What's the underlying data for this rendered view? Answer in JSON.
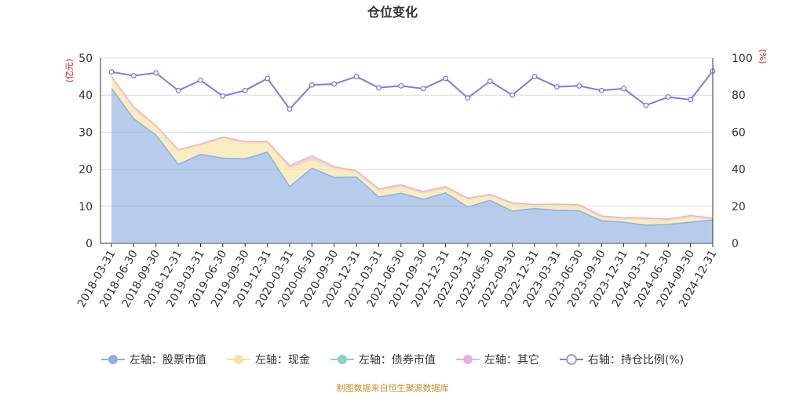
{
  "chart_data": {
    "type": "area",
    "title": "仓位变化",
    "y_left_unit": "(亿元)",
    "y_right_unit": "(%)",
    "y_left_range": [
      0,
      50
    ],
    "y_left_ticks": [
      "0",
      "10",
      "20",
      "30",
      "40",
      "50"
    ],
    "y_right_range": [
      0,
      100
    ],
    "y_right_ticks": [
      "0",
      "20",
      "40",
      "60",
      "80",
      "100"
    ],
    "grid": true,
    "legend_position": "bottom",
    "categories": [
      "2018-03-31",
      "2018-06-30",
      "2018-09-30",
      "2018-12-31",
      "2019-03-31",
      "2019-06-30",
      "2019-09-30",
      "2019-12-31",
      "2020-03-31",
      "2020-06-30",
      "2020-09-30",
      "2020-12-31",
      "2021-03-31",
      "2021-06-30",
      "2021-09-30",
      "2021-12-31",
      "2022-03-31",
      "2022-06-30",
      "2022-09-30",
      "2022-12-31",
      "2023-03-31",
      "2023-06-30",
      "2023-09-30",
      "2023-12-31",
      "2024-03-31",
      "2024-06-30",
      "2024-09-30",
      "2024-12-31"
    ],
    "series": [
      {
        "name": "左轴：股票市值",
        "axis": "left",
        "kind": "area",
        "color": "#8fb0df",
        "values": [
          41.8,
          33.6,
          29.2,
          21.3,
          24.0,
          23.0,
          22.8,
          24.6,
          15.3,
          20.3,
          17.8,
          17.9,
          12.5,
          13.5,
          11.9,
          13.6,
          9.8,
          11.6,
          8.7,
          9.4,
          8.9,
          8.8,
          6.1,
          5.7,
          4.9,
          5.1,
          5.7,
          6.3
        ]
      },
      {
        "name": "左轴：现金",
        "axis": "left",
        "kind": "area",
        "color": "#f5e2a0",
        "values": [
          3.0,
          2.8,
          2.2,
          3.7,
          2.5,
          5.3,
          4.3,
          2.5,
          5.0,
          2.2,
          2.4,
          1.3,
          1.8,
          1.8,
          1.6,
          1.3,
          2.0,
          1.2,
          1.8,
          0.8,
          1.4,
          1.3,
          0.9,
          0.8,
          1.5,
          1.0,
          1.4,
          0.3
        ]
      },
      {
        "name": "左轴：债券市值",
        "axis": "left",
        "kind": "area",
        "color": "#8ad0cc",
        "values": [
          0,
          0,
          0,
          0,
          0,
          0,
          0,
          0,
          0,
          0,
          0,
          0,
          0,
          0,
          0,
          0,
          0,
          0,
          0,
          0,
          0,
          0,
          0,
          0,
          0,
          0,
          0,
          0
        ]
      },
      {
        "name": "左轴：其它",
        "axis": "left",
        "kind": "area",
        "color": "#e6b3dc",
        "values": [
          0.3,
          0.4,
          0.4,
          0.3,
          0.3,
          0.4,
          0.4,
          0.4,
          0.7,
          1.1,
          0.5,
          0.4,
          0.4,
          0.5,
          0.5,
          0.4,
          0.4,
          0.4,
          0.4,
          0.3,
          0.3,
          0.3,
          0.4,
          0.4,
          0.4,
          0.5,
          0.4,
          0.2
        ]
      },
      {
        "name": "右轴：持仓比例(%)",
        "axis": "right",
        "kind": "line",
        "color": "#7b7bea",
        "values": [
          92.5,
          90.5,
          92.0,
          82.5,
          88.0,
          79.5,
          82.5,
          89.0,
          72.5,
          85.5,
          86.0,
          90.0,
          84.0,
          85.0,
          83.5,
          89.0,
          78.5,
          87.5,
          80.0,
          90.0,
          84.5,
          85.0,
          82.5,
          83.5,
          74.5,
          79.0,
          77.5,
          93.0
        ]
      }
    ]
  },
  "footer": {
    "source": "制图数据来自恒生聚源数据库"
  }
}
